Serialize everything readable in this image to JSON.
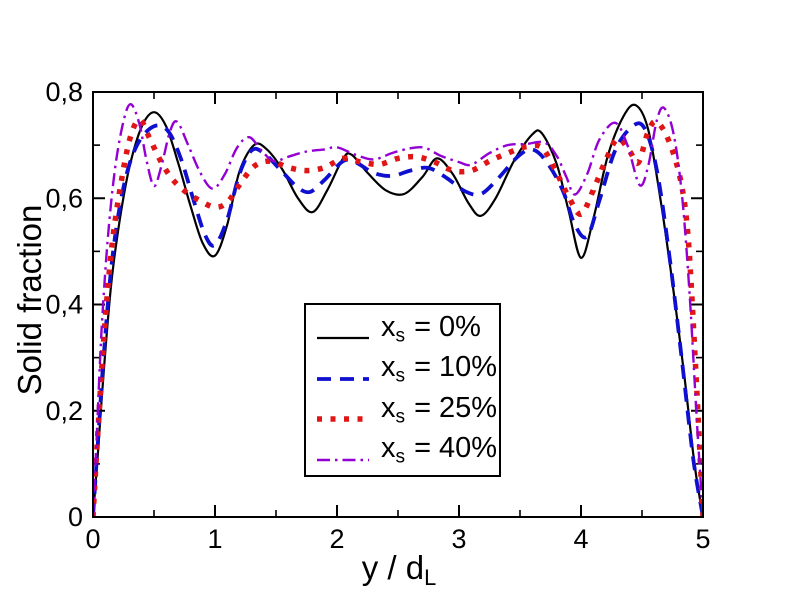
{
  "figure": {
    "background": "#ffffff",
    "x_axis_title": {
      "main": "y / d",
      "sub": "L"
    },
    "y_axis_title": "Solid fraction"
  },
  "legend": {
    "items": [
      {
        "var": "x",
        "sub": "s",
        "rest": "= 0%"
      },
      {
        "var": "x",
        "sub": "s",
        "rest": "= 10%"
      },
      {
        "var": "x",
        "sub": "s",
        "rest": "= 25%"
      },
      {
        "var": "x",
        "sub": "s",
        "rest": "= 40%"
      }
    ]
  },
  "chart_data": {
    "type": "line",
    "title": "",
    "xlabel": "y / d_L",
    "ylabel": "Solid fraction",
    "xlim": [
      0,
      5
    ],
    "ylim": [
      0,
      0.8
    ],
    "grid": false,
    "legend_position": "center",
    "x_major_ticks": [
      0,
      1,
      2,
      3,
      4,
      5
    ],
    "x_tick_labels": [
      "0",
      "1",
      "2",
      "3",
      "4",
      "5"
    ],
    "x_minor_ticks": [
      0.5,
      1.5,
      2.5,
      3.5,
      4.5
    ],
    "y_major_ticks": [
      0,
      0.2,
      0.4,
      0.6,
      0.8
    ],
    "y_tick_labels": [
      "0",
      "0,2",
      "0,4",
      "0,6",
      "0,8"
    ],
    "y_minor_ticks": [
      0.1,
      0.3,
      0.5,
      0.7
    ],
    "series": [
      {
        "name": "xs = 0%",
        "color": "#000000",
        "style": "solid",
        "points": [
          [
            0,
            0
          ],
          [
            0.04,
            0.12
          ],
          [
            0.09,
            0.28
          ],
          [
            0.15,
            0.44
          ],
          [
            0.22,
            0.56
          ],
          [
            0.3,
            0.66
          ],
          [
            0.4,
            0.735
          ],
          [
            0.5,
            0.762
          ],
          [
            0.6,
            0.735
          ],
          [
            0.7,
            0.665
          ],
          [
            0.8,
            0.585
          ],
          [
            0.9,
            0.515
          ],
          [
            1.0,
            0.492
          ],
          [
            1.1,
            0.55
          ],
          [
            1.2,
            0.65
          ],
          [
            1.32,
            0.7
          ],
          [
            1.42,
            0.693
          ],
          [
            1.55,
            0.655
          ],
          [
            1.68,
            0.6
          ],
          [
            1.8,
            0.574
          ],
          [
            1.92,
            0.615
          ],
          [
            2.05,
            0.675
          ],
          [
            2.12,
            0.682
          ],
          [
            2.25,
            0.648
          ],
          [
            2.4,
            0.615
          ],
          [
            2.55,
            0.608
          ],
          [
            2.7,
            0.64
          ],
          [
            2.82,
            0.675
          ],
          [
            2.95,
            0.645
          ],
          [
            3.08,
            0.59
          ],
          [
            3.18,
            0.567
          ],
          [
            3.3,
            0.6
          ],
          [
            3.45,
            0.67
          ],
          [
            3.6,
            0.72
          ],
          [
            3.68,
            0.722
          ],
          [
            3.8,
            0.665
          ],
          [
            3.9,
            0.575
          ],
          [
            4.0,
            0.488
          ],
          [
            4.1,
            0.56
          ],
          [
            4.22,
            0.68
          ],
          [
            4.35,
            0.755
          ],
          [
            4.45,
            0.775
          ],
          [
            4.55,
            0.73
          ],
          [
            4.65,
            0.6
          ],
          [
            4.75,
            0.44
          ],
          [
            4.85,
            0.26
          ],
          [
            4.93,
            0.1
          ],
          [
            5,
            0
          ]
        ]
      },
      {
        "name": "xs = 10%",
        "color": "#0f0fcf",
        "style": "dashed",
        "points": [
          [
            0,
            0
          ],
          [
            0.04,
            0.14
          ],
          [
            0.09,
            0.31
          ],
          [
            0.15,
            0.47
          ],
          [
            0.22,
            0.585
          ],
          [
            0.3,
            0.665
          ],
          [
            0.4,
            0.715
          ],
          [
            0.52,
            0.737
          ],
          [
            0.62,
            0.725
          ],
          [
            0.72,
            0.675
          ],
          [
            0.82,
            0.6
          ],
          [
            0.92,
            0.53
          ],
          [
            1.0,
            0.512
          ],
          [
            1.1,
            0.56
          ],
          [
            1.2,
            0.645
          ],
          [
            1.3,
            0.69
          ],
          [
            1.4,
            0.685
          ],
          [
            1.55,
            0.65
          ],
          [
            1.68,
            0.62
          ],
          [
            1.78,
            0.612
          ],
          [
            1.9,
            0.635
          ],
          [
            2.05,
            0.67
          ],
          [
            2.15,
            0.668
          ],
          [
            2.3,
            0.648
          ],
          [
            2.45,
            0.642
          ],
          [
            2.6,
            0.652
          ],
          [
            2.75,
            0.657
          ],
          [
            2.9,
            0.638
          ],
          [
            3.05,
            0.613
          ],
          [
            3.18,
            0.608
          ],
          [
            3.32,
            0.637
          ],
          [
            3.48,
            0.678
          ],
          [
            3.6,
            0.692
          ],
          [
            3.72,
            0.668
          ],
          [
            3.85,
            0.615
          ],
          [
            3.95,
            0.55
          ],
          [
            4.05,
            0.528
          ],
          [
            4.15,
            0.595
          ],
          [
            4.28,
            0.69
          ],
          [
            4.42,
            0.735
          ],
          [
            4.52,
            0.732
          ],
          [
            4.62,
            0.655
          ],
          [
            4.72,
            0.5
          ],
          [
            4.82,
            0.31
          ],
          [
            4.92,
            0.11
          ],
          [
            5,
            0
          ]
        ]
      },
      {
        "name": "xs = 25%",
        "color": "#e01515",
        "style": "dotted",
        "points": [
          [
            0,
            0
          ],
          [
            0.04,
            0.16
          ],
          [
            0.09,
            0.34
          ],
          [
            0.15,
            0.5
          ],
          [
            0.22,
            0.615
          ],
          [
            0.3,
            0.71
          ],
          [
            0.38,
            0.748
          ],
          [
            0.46,
            0.715
          ],
          [
            0.55,
            0.672
          ],
          [
            0.65,
            0.636
          ],
          [
            0.76,
            0.612
          ],
          [
            0.88,
            0.595
          ],
          [
            1.0,
            0.583
          ],
          [
            1.1,
            0.592
          ],
          [
            1.2,
            0.625
          ],
          [
            1.32,
            0.66
          ],
          [
            1.45,
            0.67
          ],
          [
            1.6,
            0.658
          ],
          [
            1.75,
            0.652
          ],
          [
            1.9,
            0.658
          ],
          [
            2.05,
            0.675
          ],
          [
            2.2,
            0.668
          ],
          [
            2.35,
            0.664
          ],
          [
            2.5,
            0.675
          ],
          [
            2.65,
            0.678
          ],
          [
            2.8,
            0.668
          ],
          [
            2.95,
            0.652
          ],
          [
            3.1,
            0.652
          ],
          [
            3.25,
            0.67
          ],
          [
            3.4,
            0.685
          ],
          [
            3.55,
            0.697
          ],
          [
            3.68,
            0.695
          ],
          [
            3.8,
            0.648
          ],
          [
            3.9,
            0.602
          ],
          [
            4.0,
            0.57
          ],
          [
            4.1,
            0.615
          ],
          [
            4.2,
            0.67
          ],
          [
            4.3,
            0.712
          ],
          [
            4.4,
            0.688
          ],
          [
            4.47,
            0.667
          ],
          [
            4.55,
            0.725
          ],
          [
            4.62,
            0.744
          ],
          [
            4.72,
            0.708
          ],
          [
            4.82,
            0.63
          ],
          [
            4.88,
            0.52
          ],
          [
            4.94,
            0.28
          ],
          [
            5,
            0
          ]
        ]
      },
      {
        "name": "xs = 40%",
        "color": "#9400d3",
        "style": "dashdot",
        "points": [
          [
            0,
            0
          ],
          [
            0.03,
            0.15
          ],
          [
            0.07,
            0.35
          ],
          [
            0.12,
            0.52
          ],
          [
            0.18,
            0.655
          ],
          [
            0.25,
            0.745
          ],
          [
            0.31,
            0.777
          ],
          [
            0.38,
            0.74
          ],
          [
            0.44,
            0.67
          ],
          [
            0.5,
            0.623
          ],
          [
            0.56,
            0.66
          ],
          [
            0.63,
            0.725
          ],
          [
            0.69,
            0.744
          ],
          [
            0.78,
            0.7
          ],
          [
            0.88,
            0.648
          ],
          [
            0.98,
            0.618
          ],
          [
            1.08,
            0.645
          ],
          [
            1.18,
            0.695
          ],
          [
            1.28,
            0.715
          ],
          [
            1.38,
            0.69
          ],
          [
            1.48,
            0.67
          ],
          [
            1.6,
            0.678
          ],
          [
            1.75,
            0.688
          ],
          [
            1.9,
            0.692
          ],
          [
            2.0,
            0.696
          ],
          [
            2.15,
            0.682
          ],
          [
            2.3,
            0.673
          ],
          [
            2.45,
            0.685
          ],
          [
            2.6,
            0.694
          ],
          [
            2.72,
            0.695
          ],
          [
            2.85,
            0.68
          ],
          [
            3.0,
            0.668
          ],
          [
            3.1,
            0.663
          ],
          [
            3.25,
            0.685
          ],
          [
            3.4,
            0.7
          ],
          [
            3.55,
            0.702
          ],
          [
            3.7,
            0.705
          ],
          [
            3.8,
            0.68
          ],
          [
            3.88,
            0.64
          ],
          [
            3.95,
            0.607
          ],
          [
            4.05,
            0.645
          ],
          [
            4.15,
            0.71
          ],
          [
            4.28,
            0.742
          ],
          [
            4.38,
            0.7
          ],
          [
            4.48,
            0.625
          ],
          [
            4.55,
            0.66
          ],
          [
            4.62,
            0.745
          ],
          [
            4.68,
            0.77
          ],
          [
            4.76,
            0.72
          ],
          [
            4.83,
            0.6
          ],
          [
            4.89,
            0.42
          ],
          [
            4.95,
            0.18
          ],
          [
            5,
            0
          ]
        ]
      }
    ]
  }
}
